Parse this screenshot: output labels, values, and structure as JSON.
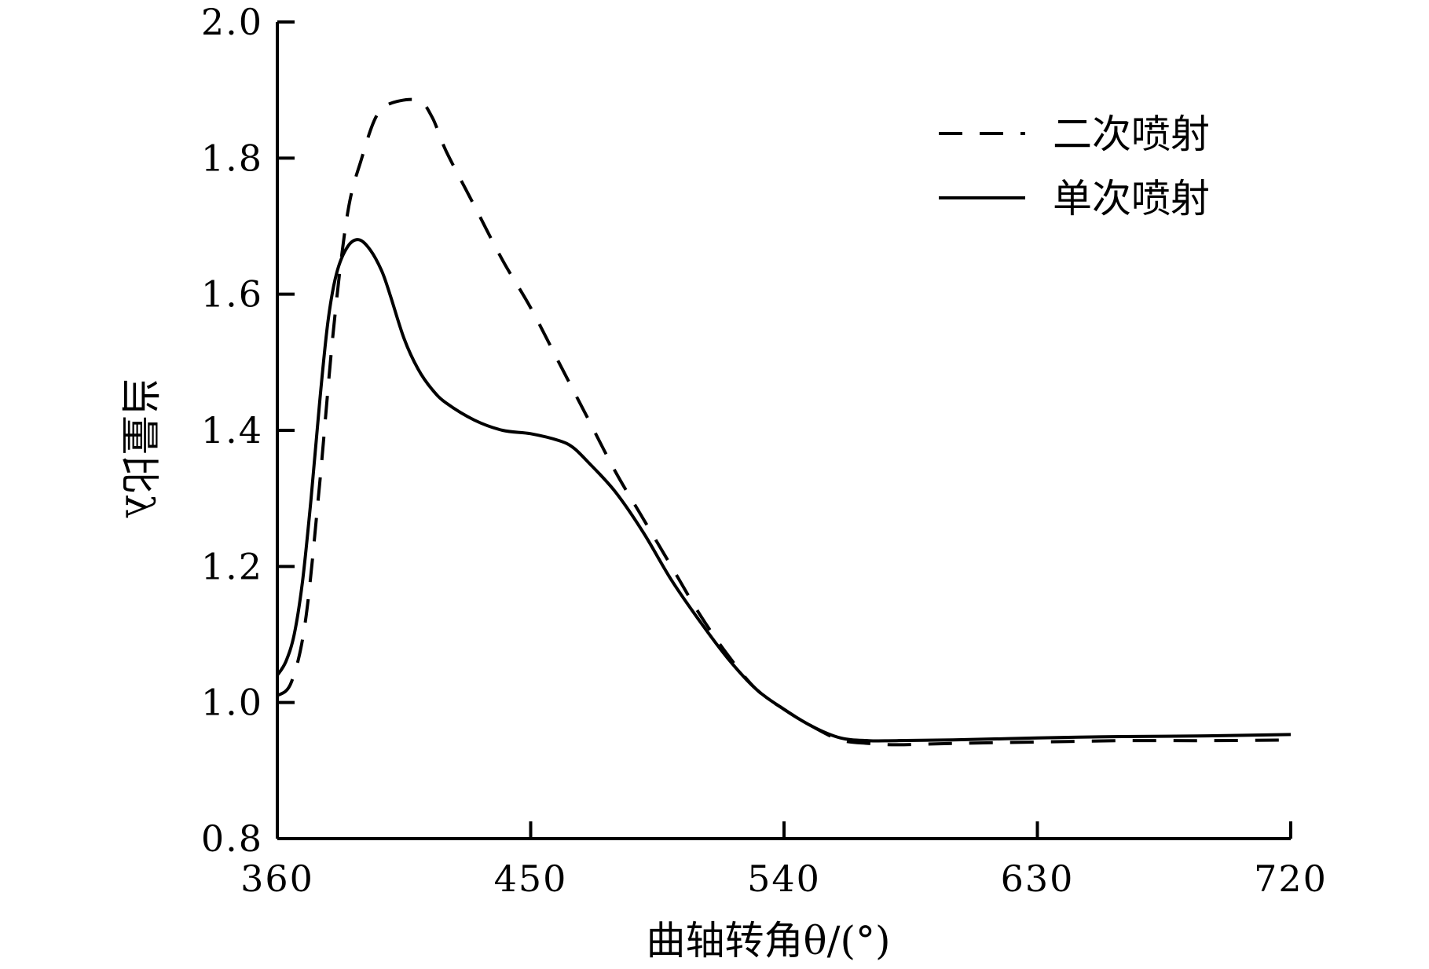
{
  "chart_data": {
    "type": "line",
    "title": "",
    "xlabel": "曲轴转角θ/(°)",
    "ylabel": "当量比λ",
    "xlim": [
      360,
      720
    ],
    "ylim": [
      0.8,
      2.0
    ],
    "x_ticks": [
      360,
      450,
      540,
      630,
      720
    ],
    "y_ticks": [
      0.8,
      1.0,
      1.2,
      1.4,
      1.6,
      1.8,
      2.0
    ],
    "x_tick_labels": [
      "360",
      "450",
      "540",
      "630",
      "720"
    ],
    "y_tick_labels": [
      "0.8",
      "1.0",
      "1.2",
      "1.4",
      "1.6",
      "1.8",
      "2.0"
    ],
    "grid": false,
    "legend_position": "top-right",
    "series": [
      {
        "name": "二次喷射",
        "style": "dashed",
        "color": "#000000",
        "points": [
          [
            360,
            1.01
          ],
          [
            365,
            1.03
          ],
          [
            370,
            1.12
          ],
          [
            375,
            1.32
          ],
          [
            380,
            1.55
          ],
          [
            385,
            1.72
          ],
          [
            390,
            1.8
          ],
          [
            395,
            1.86
          ],
          [
            400,
            1.88
          ],
          [
            410,
            1.885
          ],
          [
            415,
            1.86
          ],
          [
            420,
            1.81
          ],
          [
            430,
            1.73
          ],
          [
            440,
            1.65
          ],
          [
            450,
            1.58
          ],
          [
            460,
            1.5
          ],
          [
            470,
            1.42
          ],
          [
            480,
            1.34
          ],
          [
            490,
            1.27
          ],
          [
            500,
            1.2
          ],
          [
            510,
            1.13
          ],
          [
            520,
            1.07
          ],
          [
            530,
            1.02
          ],
          [
            540,
            0.99
          ],
          [
            550,
            0.965
          ],
          [
            560,
            0.945
          ],
          [
            570,
            0.94
          ],
          [
            580,
            0.938
          ],
          [
            600,
            0.94
          ],
          [
            630,
            0.942
          ],
          [
            660,
            0.944
          ],
          [
            690,
            0.944
          ],
          [
            720,
            0.945
          ]
        ]
      },
      {
        "name": "单次喷射",
        "style": "solid",
        "color": "#000000",
        "points": [
          [
            360,
            1.04
          ],
          [
            363,
            1.06
          ],
          [
            366,
            1.1
          ],
          [
            369,
            1.18
          ],
          [
            372,
            1.3
          ],
          [
            375,
            1.44
          ],
          [
            378,
            1.56
          ],
          [
            381,
            1.63
          ],
          [
            385,
            1.67
          ],
          [
            389,
            1.68
          ],
          [
            393,
            1.665
          ],
          [
            397,
            1.635
          ],
          [
            400,
            1.6
          ],
          [
            405,
            1.535
          ],
          [
            410,
            1.49
          ],
          [
            415,
            1.46
          ],
          [
            420,
            1.44
          ],
          [
            430,
            1.415
          ],
          [
            440,
            1.4
          ],
          [
            450,
            1.395
          ],
          [
            460,
            1.385
          ],
          [
            465,
            1.375
          ],
          [
            470,
            1.355
          ],
          [
            480,
            1.31
          ],
          [
            490,
            1.25
          ],
          [
            500,
            1.18
          ],
          [
            510,
            1.12
          ],
          [
            520,
            1.065
          ],
          [
            530,
            1.02
          ],
          [
            540,
            0.99
          ],
          [
            550,
            0.965
          ],
          [
            560,
            0.948
          ],
          [
            570,
            0.944
          ],
          [
            580,
            0.944
          ],
          [
            600,
            0.945
          ],
          [
            630,
            0.948
          ],
          [
            660,
            0.95
          ],
          [
            690,
            0.951
          ],
          [
            720,
            0.953
          ]
        ]
      }
    ]
  }
}
